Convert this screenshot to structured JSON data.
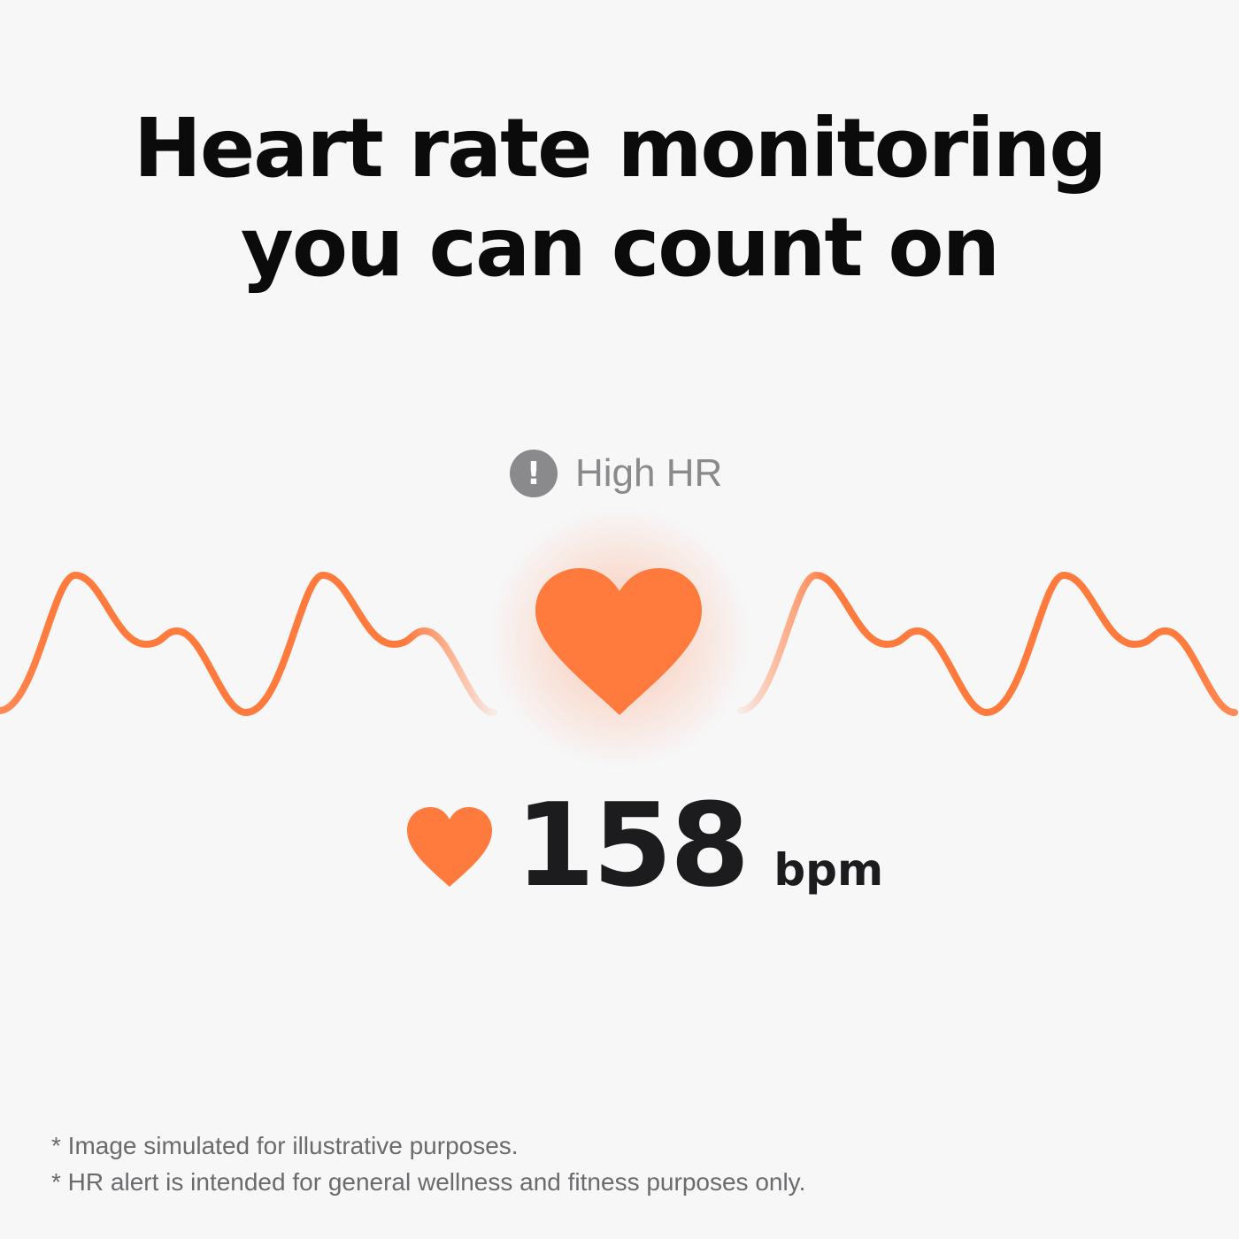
{
  "headline": {
    "line1": "Heart rate monitoring",
    "line2": "you can count on"
  },
  "alert": {
    "icon": "exclamation-circle-icon",
    "label": "High HR"
  },
  "reading": {
    "icon": "heart-icon",
    "value": "158",
    "unit": "bpm"
  },
  "footnotes": [
    "* Image simulated for illustrative purposes.",
    "* HR alert is intended for general wellness and fitness purposes only."
  ],
  "colors": {
    "accent": "#ff7a3d",
    "alert_gray": "#8a8a8d",
    "background": "#f7f7f8"
  }
}
